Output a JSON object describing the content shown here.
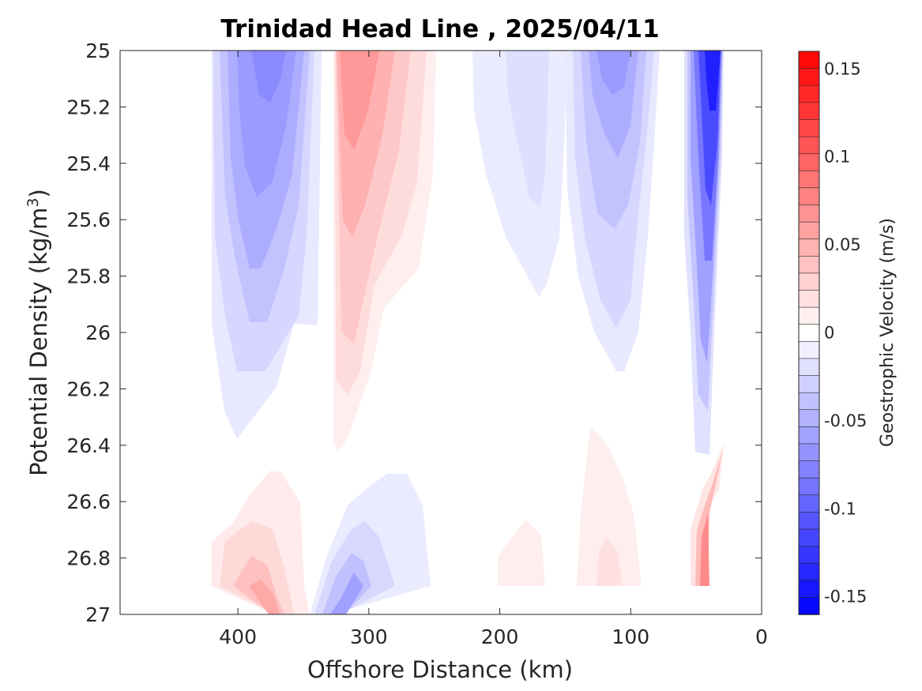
{
  "chart_data": {
    "type": "heatmap",
    "subtype": "filled-contour",
    "title": "Trinidad Head Line , 2025/04/11",
    "xlabel": "Offshore Distance (km)",
    "ylabel_main": "Potential Density (kg/m",
    "ylabel_sup": "3",
    "ylabel_end": ")",
    "x_reversed": true,
    "y_reversed": true,
    "xlim": [
      0,
      490
    ],
    "ylim": [
      25,
      27
    ],
    "x_ticks": [
      400,
      300,
      200,
      100,
      0
    ],
    "y_ticks": [
      "25",
      "25.2",
      "25.4",
      "25.6",
      "25.8",
      "26",
      "26.2",
      "26.4",
      "26.6",
      "26.8",
      "27"
    ],
    "grid": false,
    "colorbar": {
      "label": "Geostrophic Velocity (m/s)",
      "min": -0.16,
      "max": 0.16,
      "levels": 33,
      "ticks": [
        {
          "value": 0.15,
          "label": "0.15"
        },
        {
          "value": 0.1,
          "label": "0.1"
        },
        {
          "value": 0.05,
          "label": "0.05"
        },
        {
          "value": 0,
          "label": "0"
        },
        {
          "value": -0.05,
          "label": "-0.05"
        },
        {
          "value": -0.1,
          "label": "-0.1"
        },
        {
          "value": -0.15,
          "label": "-0.15"
        }
      ],
      "positive_color": "#ff0000",
      "negative_color": "#0000ff",
      "neutral_color": "#ffffff"
    },
    "features": [
      {
        "name": "offshore-negative-jet",
        "x": [
          330,
          420
        ],
        "y": [
          25,
          26.38
        ],
        "core": -0.07,
        "core_x": 380,
        "core_y": 25.1
      },
      {
        "name": "positive-jet",
        "x": [
          240,
          330
        ],
        "y": [
          25,
          26.42
        ],
        "core": 0.07,
        "core_x": 310,
        "core_y": 25.3
      },
      {
        "name": "middle-negative-band",
        "x": [
          150,
          250
        ],
        "y": [
          25,
          25.88
        ],
        "core": -0.03,
        "core_x": 190,
        "core_y": 25.2
      },
      {
        "name": "inner-negative-jet",
        "x": [
          80,
          150
        ],
        "y": [
          25,
          26.15
        ],
        "core": -0.07,
        "core_x": 115,
        "core_y": 25.3
      },
      {
        "name": "coastal-negative-jet",
        "x": [
          30,
          60
        ],
        "y": [
          25,
          26.43
        ],
        "core": -0.16,
        "core_x": 40,
        "core_y": 25.1
      },
      {
        "name": "coastal-positive-deep",
        "x": [
          30,
          60
        ],
        "y": [
          26.5,
          26.9
        ],
        "core": 0.07,
        "core_x": 40,
        "core_y": 26.85
      },
      {
        "name": "deep-positive-offshore",
        "x": [
          330,
          420
        ],
        "y": [
          26.5,
          27
        ],
        "core": 0.05,
        "core_x": 375,
        "core_y": 26.95
      },
      {
        "name": "deep-negative",
        "x": [
          250,
          330
        ],
        "y": [
          26.5,
          27
        ],
        "core": -0.06,
        "core_x": 315,
        "core_y": 26.95
      },
      {
        "name": "deep-positive-middle",
        "x": [
          170,
          200
        ],
        "y": [
          26.7,
          26.9
        ],
        "core": 0.01,
        "core_x": 185,
        "core_y": 26.85
      },
      {
        "name": "deep-positive-inner",
        "x": [
          90,
          140
        ],
        "y": [
          26.4,
          26.9
        ],
        "core": 0.03,
        "core_x": 120,
        "core_y": 26.85
      }
    ]
  }
}
